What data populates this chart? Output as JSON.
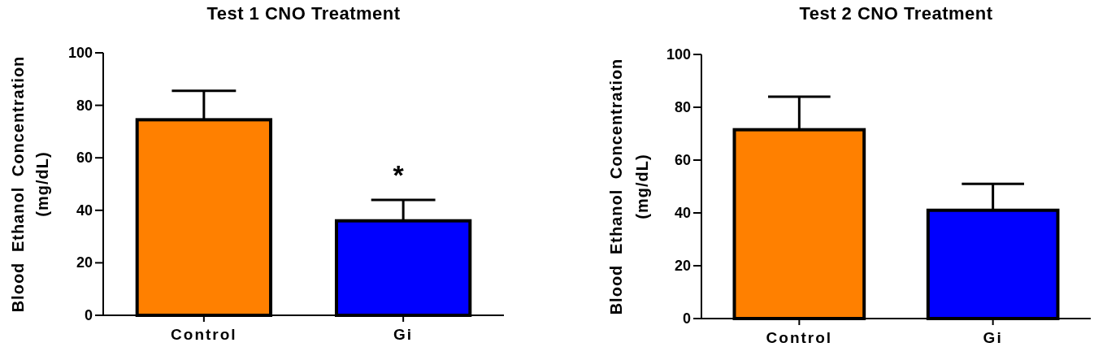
{
  "chart_data": [
    {
      "type": "bar",
      "title": "Test 1 CNO Treatment",
      "ylabel": "Blood Ethanol Concentration\n(mg/dL)",
      "categories": [
        "Control",
        "Gi"
      ],
      "values": [
        74.5,
        36
      ],
      "colors": [
        "#ff8000",
        "#0000ff"
      ],
      "errors": [
        11,
        8
      ],
      "ylim": [
        0,
        100
      ],
      "yticks": [
        0,
        20,
        40,
        60,
        80,
        100
      ],
      "annotations": [
        "*"
      ]
    },
    {
      "type": "bar",
      "title": "Test 2 CNO Treatment",
      "ylabel": "Blood Ethanol Concentration\n(mg/dL)",
      "categories": [
        "Control",
        "Gi"
      ],
      "values": [
        71.5,
        41
      ],
      "colors": [
        "#ff8000",
        "#0000ff"
      ],
      "errors": [
        12.5,
        10
      ],
      "ylim": [
        0,
        100
      ],
      "yticks": [
        0,
        20,
        40,
        60,
        80,
        100
      ]
    }
  ]
}
